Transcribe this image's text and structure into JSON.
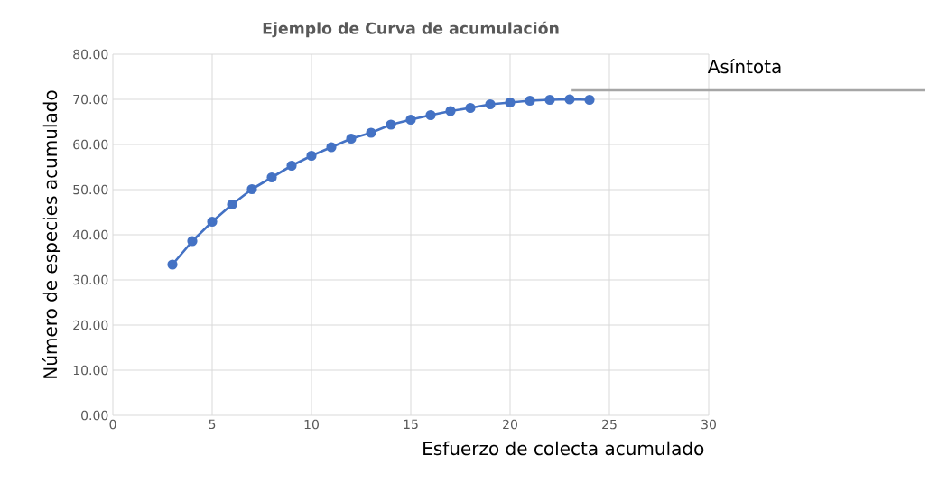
{
  "chart_data": {
    "type": "line",
    "title": "Ejemplo de Curva de acumulación",
    "xlabel": "Esfuerzo de colecta acumulado",
    "ylabel": "Número de especies acumulado",
    "x": [
      3,
      4,
      5,
      6,
      7,
      8,
      9,
      10,
      11,
      12,
      13,
      14,
      15,
      16,
      17,
      18,
      19,
      20,
      21,
      22,
      23,
      24
    ],
    "series": [
      {
        "color": "#4472c4",
        "values": [
          33.4,
          38.6,
          42.9,
          46.7,
          50.1,
          52.7,
          55.3,
          57.5,
          59.4,
          61.3,
          62.6,
          64.4,
          65.5,
          66.5,
          67.4,
          68.1,
          68.9,
          69.3,
          69.7,
          69.9,
          70.0,
          69.9
        ]
      }
    ],
    "xlim": [
      0,
      30
    ],
    "xticks": [
      0,
      5,
      10,
      15,
      20,
      25,
      30
    ],
    "ylim": [
      0,
      80
    ],
    "yticks": [
      {
        "value": 0,
        "label": "0.00"
      },
      {
        "value": 10,
        "label": "10.00"
      },
      {
        "value": 20,
        "label": "20.00"
      },
      {
        "value": 30,
        "label": "30.00"
      },
      {
        "value": 40,
        "label": "40.00"
      },
      {
        "value": 50,
        "label": "50.00"
      },
      {
        "value": 60,
        "label": "60.00"
      },
      {
        "value": 70,
        "label": "70.00"
      },
      {
        "value": 80,
        "label": "80.00"
      }
    ],
    "ref_lines": [
      {
        "axis": "y",
        "value": 72,
        "label": "Asíntota",
        "color": "#a6a6a6"
      }
    ],
    "grid": true,
    "marker": "circle",
    "line_style": "solid"
  }
}
